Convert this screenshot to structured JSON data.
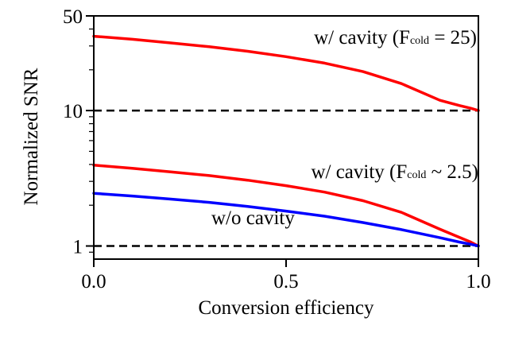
{
  "chart_data": {
    "type": "line",
    "title": "",
    "xlabel": "Conversion efficiency",
    "ylabel": "Normalized SNR",
    "xlim": [
      0,
      1
    ],
    "ylim": [
      0.8,
      50
    ],
    "yscale": "log",
    "x_ticks": [
      {
        "value": 0,
        "label": "0.0"
      },
      {
        "value": 0.5,
        "label": "0.5"
      },
      {
        "value": 1,
        "label": "1.0"
      }
    ],
    "y_ticks": [
      {
        "value": 1,
        "label": "1"
      },
      {
        "value": 10,
        "label": "10"
      },
      {
        "value": 50,
        "label": "50"
      }
    ],
    "series": [
      {
        "color": "#ff0000",
        "x": [
          0,
          0.1,
          0.2,
          0.3,
          0.4,
          0.5,
          0.6,
          0.7,
          0.8,
          0.9,
          0.95,
          0.98,
          1.0
        ],
        "y": [
          35.4,
          33.6,
          31.6,
          29.6,
          27.4,
          25.0,
          22.4,
          19.4,
          15.8,
          11.9,
          10.9,
          10.4,
          10.0
        ]
      },
      {
        "color": "#ff0000",
        "x": [
          0,
          0.1,
          0.2,
          0.3,
          0.4,
          0.5,
          0.6,
          0.7,
          0.8,
          0.9,
          0.95,
          0.98,
          1.0
        ],
        "y": [
          3.95,
          3.75,
          3.53,
          3.31,
          3.06,
          2.79,
          2.5,
          2.16,
          1.77,
          1.33,
          1.16,
          1.07,
          1.0
        ]
      },
      {
        "color": "#0000ff",
        "x": [
          0,
          0.1,
          0.2,
          0.3,
          0.4,
          0.5,
          0.6,
          0.7,
          0.8,
          0.9,
          0.95,
          0.98,
          1.0
        ],
        "y": [
          2.45,
          2.34,
          2.22,
          2.1,
          1.96,
          1.81,
          1.66,
          1.49,
          1.32,
          1.15,
          1.07,
          1.03,
          1.0
        ]
      }
    ],
    "reference_lines": [
      {
        "y": 10,
        "style": "dashed",
        "color": "#000000"
      },
      {
        "y": 1,
        "style": "dashed",
        "color": "#000000"
      }
    ],
    "annotations": [
      {
        "main": "w/ cavity (F",
        "sub": "cold",
        "rest": " = 25)"
      },
      {
        "main": "w/ cavity (F",
        "sub": "cold",
        "rest": " ~ 2.5)"
      },
      {
        "main": "w/o cavity",
        "sub": "",
        "rest": ""
      }
    ]
  }
}
